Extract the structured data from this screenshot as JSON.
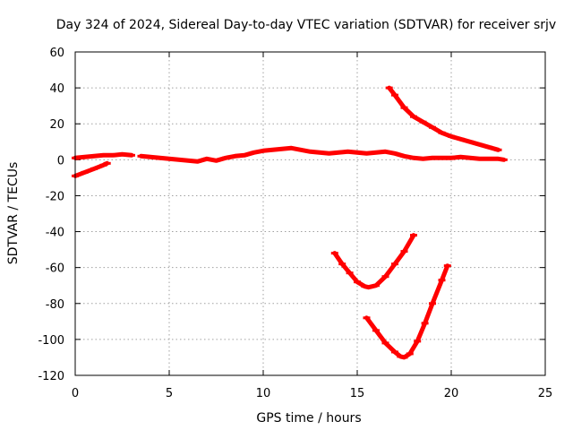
{
  "chart_data": {
    "type": "line",
    "title": "Day 324 of 2024, Sidereal Day-to-day VTEC variation (SDTVAR) for receiver srjv",
    "xlabel": "GPS time / hours",
    "ylabel": "SDTVAR / TECUs",
    "xlim": [
      0,
      25
    ],
    "ylim": [
      -120,
      60
    ],
    "xticks": [
      0,
      5,
      10,
      15,
      20,
      25
    ],
    "yticks": [
      -120,
      -100,
      -80,
      -60,
      -40,
      -20,
      0,
      20,
      40,
      60
    ],
    "grid": true,
    "series_color": "#ff0000",
    "series": [
      {
        "x": [
          0,
          0.5,
          1.0,
          1.5,
          1.7
        ],
        "y": [
          -9,
          -7,
          -5,
          -3,
          -2
        ]
      },
      {
        "x": [
          0,
          0.5,
          1.0,
          1.5,
          2.0,
          2.5,
          3.0
        ],
        "y": [
          1,
          1.5,
          2,
          2.5,
          2.5,
          3,
          2.5
        ]
      },
      {
        "x": [
          3.5,
          4.0,
          4.5,
          5.0,
          5.5,
          6.0,
          6.5,
          7.0,
          7.5,
          8.0,
          8.5,
          9.0,
          9.5,
          10.0,
          10.5,
          11.0,
          11.5,
          12.0,
          12.5,
          13.0,
          13.5,
          14.0,
          14.5,
          15.0,
          15.5,
          16.0,
          16.5,
          17.0,
          17.5,
          18.0,
          18.5,
          19.0,
          19.5,
          20.0,
          20.5,
          21.0,
          21.5,
          22.0,
          22.5,
          22.8
        ],
        "y": [
          2,
          1.5,
          1,
          0.5,
          0,
          -0.5,
          -1,
          0.5,
          -0.5,
          1,
          2,
          2.5,
          4,
          5,
          5.5,
          6,
          6.5,
          5.5,
          4.5,
          4,
          3.5,
          4,
          4.5,
          4,
          3.5,
          4,
          4.5,
          3.5,
          2,
          1,
          0.5,
          1,
          1,
          1,
          1.5,
          1,
          0.5,
          0.5,
          0.5,
          0
        ]
      },
      {
        "x": [
          16.7,
          17.0,
          17.5,
          18.0,
          18.5,
          19.0,
          19.5,
          20.0,
          20.5,
          21.0,
          21.5,
          22.0,
          22.5
        ],
        "y": [
          40,
          36,
          29,
          24,
          21,
          18,
          15,
          13,
          11.5,
          10,
          8.5,
          7,
          5.5
        ]
      },
      {
        "x": [
          13.8,
          14.2,
          14.6,
          15.0,
          15.4,
          15.6,
          16.0,
          16.5,
          17.0,
          17.5,
          18.0
        ],
        "y": [
          -52,
          -58,
          -63,
          -68,
          -70.5,
          -71,
          -70,
          -65,
          -58,
          -51,
          -42
        ]
      },
      {
        "x": [
          15.5,
          16.0,
          16.5,
          17.0,
          17.3,
          17.5,
          17.8,
          18.2,
          18.6,
          19.0,
          19.5,
          19.8
        ],
        "y": [
          -88,
          -95,
          -102,
          -107,
          -109.5,
          -110,
          -108,
          -101,
          -91,
          -80,
          -67,
          -59
        ]
      }
    ]
  }
}
